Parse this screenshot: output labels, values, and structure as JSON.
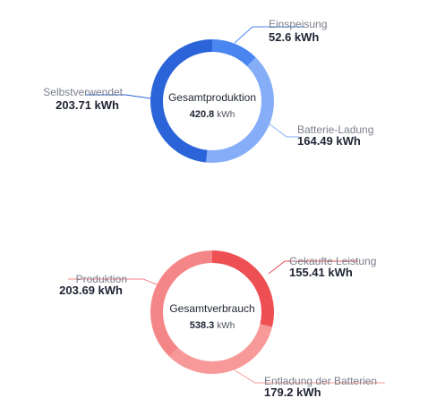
{
  "chart_data": [
    {
      "type": "pie",
      "center_label": "Gesamtproduktion",
      "center_value": "420.8",
      "center_unit": "kWh",
      "slices": [
        {
          "name": "Einspeisung",
          "value": 52.6,
          "value_label": "52.6 kWh",
          "color": "#4a86f0"
        },
        {
          "name": "Batterie-Ladung",
          "value": 164.49,
          "value_label": "164.49 kWh",
          "color": "#86aef8"
        },
        {
          "name": "Selbstverwendet",
          "value": 203.71,
          "value_label": "203.71 kWh",
          "color": "#2b64d8"
        }
      ]
    },
    {
      "type": "pie",
      "center_label": "Gesamtverbrauch",
      "center_value": "538.3",
      "center_unit": "kWh",
      "slices": [
        {
          "name": "Gekaufte Leistung",
          "value": 155.41,
          "value_label": "155.41 kWh",
          "color": "#ee4f52"
        },
        {
          "name": "Entladung der Batterien",
          "value": 179.2,
          "value_label": "179.2 kWh",
          "color": "#f79999"
        },
        {
          "name": "Produktion",
          "value": 203.69,
          "value_label": "203.69 kWh",
          "color": "#f58688"
        }
      ]
    }
  ]
}
